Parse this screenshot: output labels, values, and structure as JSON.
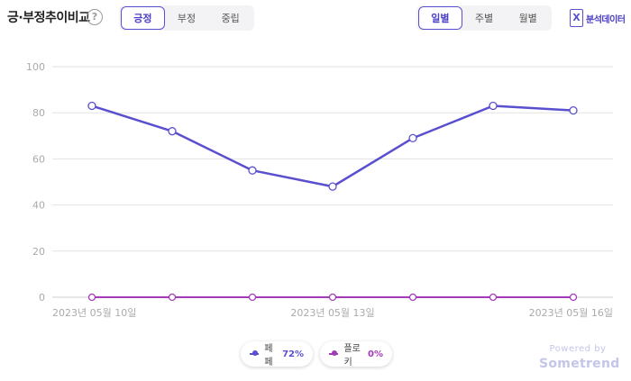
{
  "header": {
    "title": "긍·부정추이비교",
    "help_glyph": "?",
    "sentiment_tabs": [
      "긍정",
      "부정",
      "중립"
    ],
    "sentiment_active": 0,
    "period_tabs": [
      "일별",
      "주별",
      "월별"
    ],
    "period_active": 0,
    "export_label": "분석데이터",
    "export_icon": "excel-icon"
  },
  "colors": {
    "accent": "#5a4fcf",
    "series1": "#5a4fcf",
    "series2": "#a23bb8",
    "grid": "#e2e2e2",
    "tick": "#aaaaaa"
  },
  "legend": [
    {
      "name": "페페",
      "pct": "72%"
    },
    {
      "name": "플로키",
      "pct": "0%"
    }
  ],
  "footer": {
    "powered_by": "Powered by",
    "brand": "Sometrend"
  },
  "chart_data": {
    "type": "line",
    "x": [
      "2023-05-10",
      "2023-05-11",
      "2023-05-12",
      "2023-05-13",
      "2023-05-14",
      "2023-05-15",
      "2023-05-16"
    ],
    "x_tick_labels": [
      "2023년 05월 10일",
      "2023년 05월 13일",
      "2023년 05월 16일"
    ],
    "x_tick_index": [
      0,
      3,
      6
    ],
    "ylim": [
      0,
      100
    ],
    "yticks": [
      0,
      20,
      40,
      60,
      80,
      100
    ],
    "grid": true,
    "legend_position": "bottom-center",
    "series": [
      {
        "name": "페페",
        "values": [
          83,
          72,
          55,
          48,
          69,
          83,
          81
        ]
      },
      {
        "name": "플로키",
        "values": [
          0,
          0,
          0,
          0,
          0,
          0,
          0
        ]
      }
    ]
  }
}
